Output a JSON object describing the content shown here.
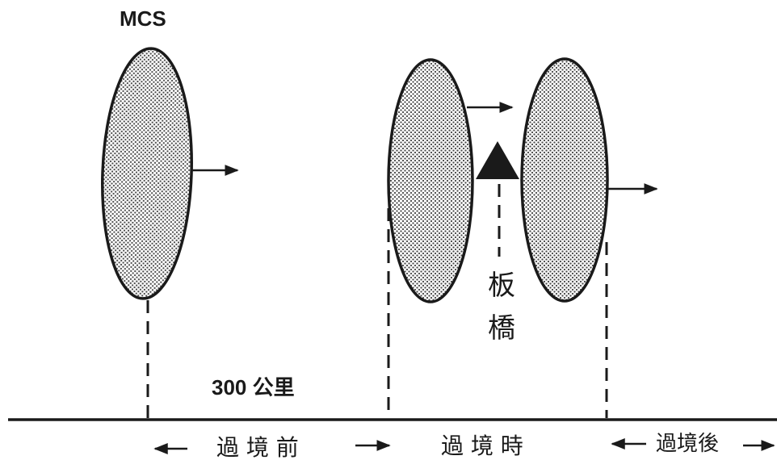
{
  "title": "MCS",
  "distance_label": "300 公里",
  "station_label_line1": "板",
  "station_label_line2": "橋",
  "phases": {
    "before": "過 境 前",
    "during": "過 境 時",
    "after": "過境後"
  },
  "colors": {
    "ink": "#1a1a1a",
    "fill_dot": "#555555",
    "background": "#ffffff"
  },
  "icons": {
    "station_marker": "triangle-marker-icon",
    "motion_arrow": "arrow-right-icon"
  }
}
